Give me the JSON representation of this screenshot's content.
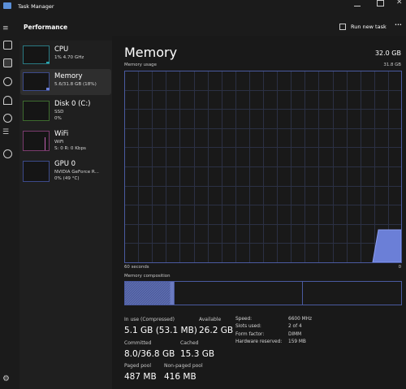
{
  "window": {
    "title": "Task Manager"
  },
  "header": {
    "title": "Performance",
    "run_new_task": "Run new task",
    "more": "•••"
  },
  "devices": [
    {
      "name": "CPU",
      "lines": [
        "1% 4.70 GHz"
      ]
    },
    {
      "name": "Memory",
      "lines": [
        "5.6/31.8 GB (18%)"
      ]
    },
    {
      "name": "Disk 0 (C:)",
      "lines": [
        "SSD",
        "0%"
      ]
    },
    {
      "name": "WiFi",
      "lines": [
        "WiFi",
        "S: 0 R: 0 Kbps"
      ]
    },
    {
      "name": "GPU 0",
      "lines": [
        "NVIDIA GeForce R...",
        "0% (49 °C)"
      ]
    }
  ],
  "panel": {
    "title": "Memory",
    "total": "32.0 GB",
    "usage_label": "Memory usage",
    "usage_max": "31.8 GB",
    "time_left": "60 seconds",
    "time_right": "0",
    "composition_label": "Memory composition"
  },
  "stats": [
    {
      "label": "In use (Compressed)",
      "value": "5.1 GB (53.1 MB)"
    },
    {
      "label": "Available",
      "value": "26.2 GB"
    },
    {
      "label": "Committed",
      "value": "8.0/36.8 GB"
    },
    {
      "label": "Cached",
      "value": "15.3 GB"
    },
    {
      "label": "Paged pool",
      "value": "487 MB"
    },
    {
      "label": "Non-paged pool",
      "value": "416 MB"
    }
  ],
  "specs": [
    {
      "label": "Speed:",
      "value": "6600 MHz"
    },
    {
      "label": "Slots used:",
      "value": "2 of 4"
    },
    {
      "label": "Form factor:",
      "value": "DIMM"
    },
    {
      "label": "Hardware reserved:",
      "value": "159 MB"
    }
  ]
}
